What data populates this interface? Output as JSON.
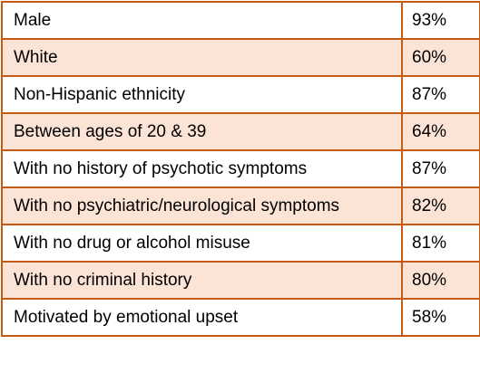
{
  "colors": {
    "border": "#c55a11",
    "shaded_row": "#fbe4d5",
    "plain_row": "#ffffff"
  },
  "rows": [
    {
      "label": "Male",
      "value": "93%"
    },
    {
      "label": "White",
      "value": "60%"
    },
    {
      "label": "Non-Hispanic ethnicity",
      "value": "87%"
    },
    {
      "label": "Between ages of 20 & 39",
      "value": "64%"
    },
    {
      "label": "With no history of psychotic symptoms",
      "value": "87%"
    },
    {
      "label": "With no psychiatric/neurological symptoms",
      "value": "82%"
    },
    {
      "label": "With no drug or alcohol misuse",
      "value": "81%"
    },
    {
      "label": "With no criminal history",
      "value": "80%"
    },
    {
      "label": "Motivated by emotional upset",
      "value": "58%"
    }
  ]
}
